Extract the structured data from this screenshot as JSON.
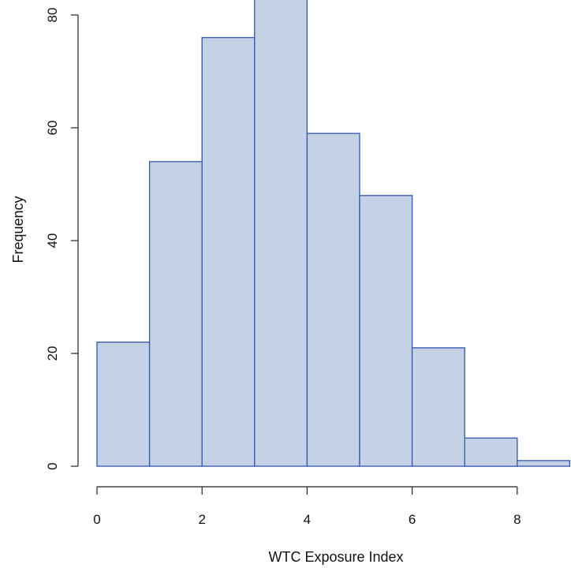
{
  "chart_data": {
    "type": "bar",
    "subtype": "histogram",
    "title": "",
    "xlabel": "WTC Exposure Index",
    "ylabel": "Frequency",
    "bins": [
      {
        "x0": 0,
        "x1": 1,
        "count": 22
      },
      {
        "x0": 1,
        "x1": 2,
        "count": 54
      },
      {
        "x0": 2,
        "x1": 3,
        "count": 76
      },
      {
        "x0": 3,
        "x1": 4,
        "count": 86
      },
      {
        "x0": 4,
        "x1": 5,
        "count": 59
      },
      {
        "x0": 5,
        "x1": 6,
        "count": 48
      },
      {
        "x0": 6,
        "x1": 7,
        "count": 21
      },
      {
        "x0": 7,
        "x1": 8,
        "count": 5
      },
      {
        "x0": 8,
        "x1": 9,
        "count": 1
      }
    ],
    "x_ticks": [
      0,
      2,
      4,
      6,
      8
    ],
    "y_ticks": [
      0,
      20,
      40,
      60,
      80
    ],
    "xlim": [
      0,
      9
    ],
    "ylim": [
      0,
      86
    ],
    "grid": false,
    "colors": {
      "bar_fill": "#c5d2e6",
      "bar_stroke": "#3d5fb0",
      "axis": "#222222"
    }
  }
}
